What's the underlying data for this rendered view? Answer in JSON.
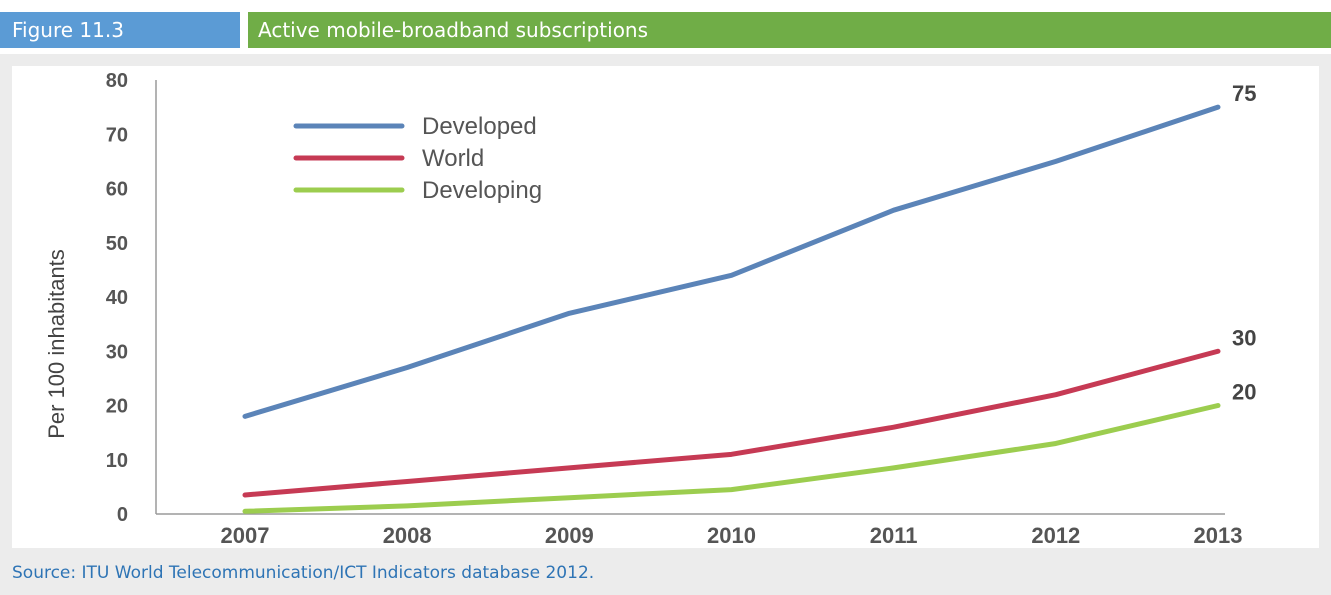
{
  "figure": {
    "label": "Figure 11.3",
    "title": "Active mobile-broadband subscriptions",
    "source": "Source: ITU World Telecommunication/ICT Indicators database 2012."
  },
  "chart_data": {
    "type": "line",
    "xlabel": "",
    "ylabel": "Per 100 inhabitants",
    "x": [
      "2007",
      "2008",
      "2009",
      "2010",
      "2011",
      "2012",
      "2013"
    ],
    "ylim": [
      0,
      80
    ],
    "yticks": [
      "0",
      "10",
      "20",
      "30",
      "40",
      "50",
      "60",
      "70",
      "80"
    ],
    "grid": false,
    "legend": "top-left",
    "series": [
      {
        "name": "Developed",
        "color": "#5b84b8",
        "values": [
          18,
          27,
          37,
          44,
          56,
          65,
          75
        ],
        "end_label": "75"
      },
      {
        "name": "World",
        "color": "#c63a54",
        "values": [
          3.5,
          6,
          8.5,
          11,
          16,
          22,
          30
        ],
        "end_label": "30"
      },
      {
        "name": "Developing",
        "color": "#9ccd4f",
        "values": [
          0.5,
          1.5,
          3,
          4.5,
          8.5,
          13,
          20
        ],
        "end_label": "20"
      }
    ]
  }
}
